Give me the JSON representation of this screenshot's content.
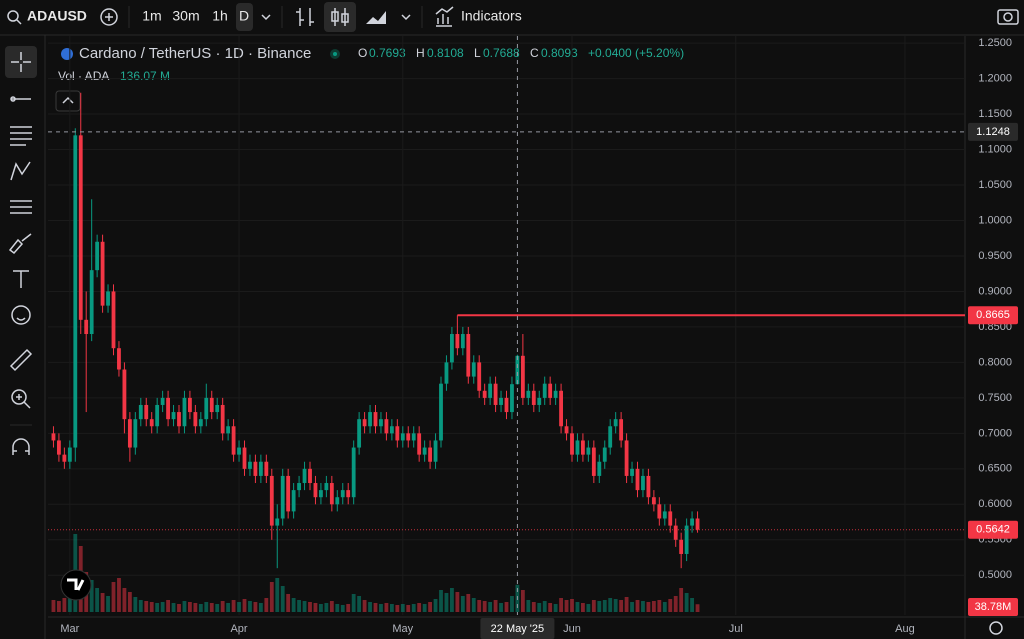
{
  "toolbar": {
    "symbol": "ADAUSD",
    "intervals": [
      "1m",
      "30m",
      "1h",
      "D"
    ],
    "indicators": "Indicators"
  },
  "legend": {
    "title": "Cardano / TetherUS · 1D · Binance",
    "o": "O",
    "h": "H",
    "l": "L",
    "c": "C",
    "change": "+0.0400 (+5.20%)",
    "vol_title": "Vol · ADA",
    "vol_value": "136.07 M"
  },
  "chart_data": {
    "type": "candlestick",
    "up_color": "#089981",
    "down_color": "#f23645",
    "grid": true,
    "open": [
      0.7,
      0.69,
      0.67,
      0.66,
      0.68,
      1.12,
      0.86,
      0.84,
      0.93,
      0.97,
      0.88,
      0.9,
      0.82,
      0.79,
      0.72,
      0.68,
      0.72,
      0.74,
      0.72,
      0.71,
      0.74,
      0.75,
      0.72,
      0.73,
      0.71,
      0.75,
      0.73,
      0.71,
      0.72,
      0.75,
      0.73,
      0.74,
      0.7,
      0.71,
      0.67,
      0.68,
      0.65,
      0.66,
      0.64,
      0.66,
      0.64,
      0.57,
      0.58,
      0.64,
      0.59,
      0.62,
      0.63,
      0.65,
      0.63,
      0.61,
      0.62,
      0.63,
      0.6,
      0.61,
      0.62,
      0.61,
      0.68,
      0.72,
      0.71,
      0.73,
      0.71,
      0.72,
      0.7,
      0.71,
      0.69,
      0.7,
      0.69,
      0.7,
      0.67,
      0.68,
      0.66,
      0.69,
      0.77,
      0.8,
      0.84,
      0.82,
      0.84,
      0.78,
      0.8,
      0.76,
      0.75,
      0.77,
      0.74,
      0.75,
      0.73,
      0.7693,
      0.8093,
      0.75,
      0.76,
      0.74,
      0.75,
      0.77,
      0.75,
      0.76,
      0.71,
      0.7,
      0.67,
      0.69,
      0.67,
      0.68,
      0.64,
      0.66,
      0.68,
      0.71,
      0.72,
      0.69,
      0.64,
      0.65,
      0.62,
      0.64,
      0.61,
      0.6,
      0.58,
      0.59,
      0.57,
      0.55,
      0.53,
      0.57,
      0.58
    ],
    "high": [
      0.71,
      0.7,
      0.68,
      0.69,
      1.13,
      1.18,
      0.9,
      1.03,
      0.98,
      0.98,
      0.91,
      0.91,
      0.83,
      0.8,
      0.73,
      0.73,
      0.75,
      0.75,
      0.73,
      0.75,
      0.76,
      0.76,
      0.74,
      0.74,
      0.76,
      0.76,
      0.74,
      0.73,
      0.77,
      0.76,
      0.75,
      0.75,
      0.72,
      0.72,
      0.69,
      0.69,
      0.67,
      0.67,
      0.67,
      0.67,
      0.65,
      0.6,
      0.65,
      0.65,
      0.63,
      0.64,
      0.66,
      0.66,
      0.64,
      0.63,
      0.64,
      0.64,
      0.62,
      0.63,
      0.63,
      0.69,
      0.73,
      0.73,
      0.74,
      0.74,
      0.73,
      0.73,
      0.72,
      0.72,
      0.71,
      0.71,
      0.71,
      0.71,
      0.69,
      0.69,
      0.7,
      0.78,
      0.81,
      0.85,
      0.8665,
      0.85,
      0.85,
      0.81,
      0.81,
      0.77,
      0.78,
      0.78,
      0.76,
      0.76,
      0.78,
      0.8108,
      0.84,
      0.77,
      0.77,
      0.76,
      0.78,
      0.78,
      0.77,
      0.77,
      0.72,
      0.71,
      0.7,
      0.7,
      0.69,
      0.69,
      0.67,
      0.69,
      0.72,
      0.73,
      0.73,
      0.7,
      0.66,
      0.66,
      0.65,
      0.65,
      0.62,
      0.61,
      0.6,
      0.6,
      0.58,
      0.56,
      0.58,
      0.59,
      0.59
    ],
    "low": [
      0.68,
      0.66,
      0.65,
      0.65,
      0.66,
      0.84,
      0.73,
      0.83,
      0.92,
      0.87,
      0.87,
      0.81,
      0.78,
      0.7,
      0.66,
      0.67,
      0.71,
      0.71,
      0.7,
      0.7,
      0.73,
      0.71,
      0.71,
      0.7,
      0.7,
      0.72,
      0.7,
      0.7,
      0.71,
      0.72,
      0.72,
      0.69,
      0.69,
      0.66,
      0.66,
      0.64,
      0.64,
      0.63,
      0.63,
      0.63,
      0.55,
      0.51,
      0.57,
      0.58,
      0.58,
      0.61,
      0.62,
      0.62,
      0.6,
      0.6,
      0.61,
      0.59,
      0.59,
      0.6,
      0.6,
      0.6,
      0.67,
      0.7,
      0.7,
      0.7,
      0.7,
      0.69,
      0.69,
      0.68,
      0.68,
      0.68,
      0.68,
      0.66,
      0.66,
      0.65,
      0.65,
      0.68,
      0.76,
      0.79,
      0.81,
      0.81,
      0.77,
      0.77,
      0.75,
      0.74,
      0.74,
      0.73,
      0.73,
      0.72,
      0.72,
      0.7688,
      0.74,
      0.74,
      0.73,
      0.73,
      0.74,
      0.74,
      0.74,
      0.7,
      0.69,
      0.66,
      0.66,
      0.66,
      0.66,
      0.63,
      0.63,
      0.65,
      0.67,
      0.7,
      0.68,
      0.63,
      0.63,
      0.61,
      0.61,
      0.6,
      0.59,
      0.57,
      0.57,
      0.56,
      0.54,
      0.51,
      0.52,
      0.56,
      0.56
    ],
    "close": [
      0.69,
      0.67,
      0.66,
      0.68,
      1.12,
      0.86,
      0.84,
      0.93,
      0.97,
      0.88,
      0.9,
      0.82,
      0.79,
      0.72,
      0.68,
      0.72,
      0.74,
      0.72,
      0.71,
      0.74,
      0.75,
      0.72,
      0.73,
      0.71,
      0.75,
      0.73,
      0.71,
      0.72,
      0.75,
      0.73,
      0.74,
      0.7,
      0.71,
      0.67,
      0.68,
      0.65,
      0.66,
      0.64,
      0.66,
      0.64,
      0.57,
      0.58,
      0.64,
      0.59,
      0.62,
      0.63,
      0.65,
      0.63,
      0.61,
      0.62,
      0.63,
      0.6,
      0.61,
      0.62,
      0.61,
      0.68,
      0.72,
      0.71,
      0.73,
      0.71,
      0.72,
      0.7,
      0.71,
      0.69,
      0.7,
      0.69,
      0.7,
      0.67,
      0.68,
      0.66,
      0.69,
      0.77,
      0.8,
      0.84,
      0.82,
      0.84,
      0.78,
      0.8,
      0.76,
      0.75,
      0.77,
      0.74,
      0.75,
      0.73,
      0.7693,
      0.8093,
      0.75,
      0.76,
      0.74,
      0.75,
      0.77,
      0.75,
      0.76,
      0.71,
      0.7,
      0.67,
      0.69,
      0.67,
      0.68,
      0.64,
      0.66,
      0.68,
      0.71,
      0.72,
      0.69,
      0.64,
      0.65,
      0.62,
      0.64,
      0.61,
      0.6,
      0.58,
      0.59,
      0.57,
      0.55,
      0.53,
      0.57,
      0.58,
      0.5642
    ],
    "volume": [
      60,
      55,
      70,
      110,
      390,
      330,
      200,
      160,
      120,
      95,
      80,
      150,
      170,
      120,
      100,
      75,
      60,
      55,
      50,
      45,
      50,
      60,
      45,
      40,
      55,
      50,
      45,
      40,
      50,
      45,
      40,
      55,
      45,
      60,
      50,
      65,
      55,
      50,
      45,
      70,
      150,
      170,
      130,
      90,
      70,
      60,
      55,
      50,
      45,
      40,
      45,
      55,
      40,
      35,
      40,
      90,
      80,
      60,
      50,
      45,
      40,
      45,
      40,
      35,
      40,
      35,
      40,
      45,
      40,
      50,
      65,
      110,
      95,
      120,
      100,
      80,
      90,
      70,
      60,
      55,
      50,
      60,
      45,
      50,
      80,
      136.07,
      110,
      60,
      50,
      45,
      55,
      45,
      40,
      70,
      60,
      65,
      50,
      45,
      40,
      60,
      55,
      60,
      70,
      65,
      60,
      75,
      50,
      60,
      55,
      50,
      55,
      60,
      50,
      65,
      80,
      120,
      95,
      70,
      38.78
    ],
    "last_volume_label": "38.78M",
    "xlim": [
      -1,
      167
    ],
    "xticks": [
      {
        "value": 3,
        "label": "Mar"
      },
      {
        "value": 34,
        "label": "Apr"
      },
      {
        "value": 64,
        "label": "May"
      },
      {
        "value": 95,
        "label": "Jun"
      },
      {
        "value": 125,
        "label": "Jul"
      },
      {
        "value": 156,
        "label": "Aug"
      }
    ],
    "ylim": [
      0.444,
      1.26
    ],
    "yticks": [
      {
        "value": 0.5,
        "label": "0.5000"
      },
      {
        "value": 0.55,
        "label": "0.5500"
      },
      {
        "value": 0.6,
        "label": "0.6000"
      },
      {
        "value": 0.65,
        "label": "0.6500"
      },
      {
        "value": 0.7,
        "label": "0.7000"
      },
      {
        "value": 0.75,
        "label": "0.7500"
      },
      {
        "value": 0.8,
        "label": "0.8000"
      },
      {
        "value": 0.85,
        "label": "0.8500"
      },
      {
        "value": 0.9,
        "label": "0.9000"
      },
      {
        "value": 0.95,
        "label": "0.9500"
      },
      {
        "value": 1.0,
        "label": "1.0000"
      },
      {
        "value": 1.05,
        "label": "1.0500"
      },
      {
        "value": 1.1,
        "label": "1.1000"
      },
      {
        "value": 1.15,
        "label": "1.1500"
      },
      {
        "value": 1.2,
        "label": "1.2000"
      },
      {
        "value": 1.25,
        "label": "1.2500"
      }
    ],
    "vlim": [
      0,
      400
    ],
    "crosshair": {
      "x": {
        "value": 85,
        "label": "22 May '25"
      },
      "y": 1.1248
    }
  }
}
